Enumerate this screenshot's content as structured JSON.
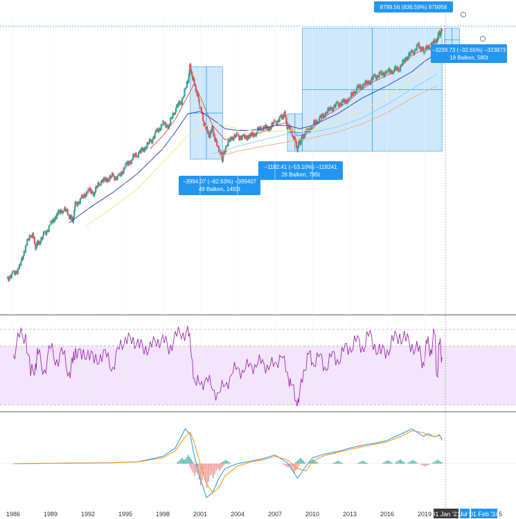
{
  "chart_data": [
    {
      "type": "line",
      "pane": "price",
      "scale": "log",
      "xlim": [
        1985.5,
        2025.5
      ],
      "ylim_log10": [
        1.9,
        4.1
      ],
      "x": [
        1985.5,
        1986,
        1986.5,
        1987,
        1987.5,
        1987.8,
        1988,
        1988.5,
        1989,
        1989.5,
        1990,
        1990.5,
        1990.8,
        1991,
        1991.5,
        1992,
        1992.5,
        1993,
        1993.5,
        1994,
        1994.5,
        1995,
        1995.5,
        1996,
        1996.5,
        1997,
        1997.5,
        1998,
        1998.5,
        1999,
        1999.5,
        2000,
        2000.2,
        2000.5,
        2000.8,
        2001,
        2001.3,
        2001.7,
        2002,
        2002.3,
        2002.7,
        2002.8,
        2003,
        2003.5,
        2004,
        2004.5,
        2005,
        2005.5,
        2006,
        2006.5,
        2007,
        2007.5,
        2007.8,
        2008,
        2008.5,
        2008.8,
        2009,
        2009.2,
        2009.5,
        2010,
        2010.5,
        2011,
        2011.5,
        2012,
        2012.5,
        2013,
        2013.5,
        2014,
        2014.5,
        2015,
        2015.5,
        2016,
        2016.5,
        2017,
        2017.5,
        2018,
        2018.5,
        2018.9,
        2019,
        2019.5,
        2020,
        2020.2,
        2020.4
      ],
      "series": [
        {
          "role": "price",
          "values": [
            125,
            135,
            150,
            220,
            280,
            220,
            230,
            270,
            320,
            380,
            420,
            380,
            340,
            460,
            500,
            580,
            560,
            680,
            700,
            740,
            730,
            890,
            1000,
            1100,
            1200,
            1350,
            1600,
            1850,
            1800,
            2400,
            2750,
            3800,
            5000,
            3800,
            3100,
            2500,
            1900,
            1500,
            1700,
            1300,
            1100,
            1000,
            1200,
            1450,
            1500,
            1450,
            1500,
            1600,
            1750,
            1700,
            1900,
            2050,
            2200,
            1750,
            1500,
            1200,
            1350,
            1450,
            1600,
            1800,
            2000,
            2200,
            2400,
            2600,
            2700,
            2900,
            3400,
            3600,
            3800,
            4200,
            4400,
            4600,
            4700,
            4900,
            5800,
            6400,
            7200,
            6700,
            6600,
            7300,
            8000,
            9000,
            9300
          ]
        },
        {
          "role": "sma-slow",
          "values": [
            null,
            null,
            null,
            null,
            null,
            null,
            null,
            null,
            null,
            null,
            null,
            null,
            null,
            null,
            null,
            null,
            null,
            null,
            null,
            null,
            null,
            null,
            null,
            null,
            null,
            null,
            null,
            null,
            null,
            null,
            null,
            null,
            null,
            null,
            null,
            null,
            null,
            null,
            null,
            null,
            null,
            null,
            null,
            null,
            null,
            null,
            null,
            null,
            null,
            null,
            null,
            null,
            null,
            null,
            null,
            null,
            null,
            null,
            null,
            null,
            null,
            null,
            null,
            null,
            null,
            null,
            null,
            null,
            null,
            null,
            null,
            null,
            null,
            null,
            null,
            null,
            null,
            null,
            null,
            null,
            null,
            null,
            null
          ]
        }
      ],
      "moving_averages": [
        {
          "color": "#e0525a",
          "x": [
            1997,
            1998,
            1999,
            2000,
            2000.5,
            2001,
            2001.5,
            2002,
            2003,
            2004,
            2005,
            2006,
            2007,
            2008,
            2008.8,
            2009.5,
            2010,
            2011,
            2012,
            2013,
            2014,
            2015,
            2016,
            2017,
            2018,
            2019,
            2020.3
          ],
          "y": [
            1200,
            1500,
            2000,
            3000,
            3700,
            3000,
            2300,
            1800,
            1400,
            1500,
            1500,
            1600,
            1800,
            1900,
            1500,
            1550,
            1700,
            2100,
            2400,
            2800,
            3400,
            3900,
            4300,
            4900,
            6100,
            6900,
            8400
          ]
        },
        {
          "color": "#3046b5",
          "x": [
            1990.5,
            1992,
            1994,
            1996,
            1998,
            1999,
            2000,
            2001,
            2002,
            2003,
            2004,
            2005,
            2006,
            2007,
            2008,
            2009,
            2010,
            2012,
            2014,
            2016,
            2018,
            2019,
            2020.3
          ],
          "y": [
            330,
            420,
            560,
            780,
            1200,
            1600,
            2200,
            2300,
            2000,
            1700,
            1650,
            1650,
            1700,
            1800,
            1800,
            1700,
            1800,
            2200,
            2900,
            3600,
            4600,
            5500,
            6600
          ]
        },
        {
          "color": "#f2e98a",
          "x": [
            1991.8,
            1994,
            1996,
            1998,
            2000,
            2002,
            2003,
            2004,
            2006,
            2008,
            2010,
            2012,
            2014,
            2016,
            2018,
            2020
          ],
          "y": [
            310,
            430,
            600,
            950,
            1500,
            1900,
            1800,
            1700,
            1600,
            1650,
            1650,
            1900,
            2300,
            3000,
            4000,
            5300
          ]
        },
        {
          "color": "#87d4f0",
          "x": [
            2002,
            2004,
            2006,
            2008,
            2010,
            2012,
            2014,
            2016,
            2018,
            2020
          ],
          "y": [
            1100,
            1250,
            1400,
            1550,
            1600,
            1750,
            2050,
            2600,
            3400,
            4400
          ]
        },
        {
          "color": "#f2b080",
          "x": [
            2002.5,
            2004,
            2006,
            2008,
            2010,
            2012,
            2014,
            2016,
            2018,
            2020
          ],
          "y": [
            1050,
            1150,
            1250,
            1350,
            1450,
            1600,
            1850,
            2250,
            2900,
            3600
          ]
        }
      ],
      "measurements": [
        {
          "text_main": "−3994.07 (−82.93%) −399407",
          "text_sub": "49 Balken, 1492t",
          "x_from": 2000.2,
          "x_to": 2002.8,
          "y_from": 5000,
          "y_to": 1000
        },
        {
          "text_main": "−1182.41 (−53.10%) −118241",
          "text_sub": "26 Balken, 795t",
          "x_from": 2008.0,
          "x_to": 2009.2,
          "y_from": 2200,
          "y_to": 1150
        },
        {
          "text_main": "8799.56 (836.59%) 879956",
          "text_sub": "",
          "x_from": 2009.2,
          "x_to": 2020.4,
          "y_from": 1150,
          "y_to": 9800
        },
        {
          "text_main": "−3238.73 (−32.65%) −323873",
          "text_sub": "19 Balken, 580t",
          "x_from": 2020.6,
          "x_to": 2021.8,
          "y_from": 9800,
          "y_to": 6500
        }
      ]
    },
    {
      "type": "line",
      "pane": "rsi",
      "ylim": [
        20,
        90
      ],
      "levels": [
        30,
        70
      ],
      "x": [
        1986,
        1986.5,
        1987,
        1987.4,
        1987.8,
        1988,
        1988.5,
        1989,
        1989.5,
        1990,
        1990.5,
        1990.8,
        1991,
        1991.5,
        1992,
        1992.5,
        1993,
        1993.5,
        1994,
        1994.5,
        1995,
        1995.5,
        1996,
        1996.5,
        1997,
        1997.5,
        1998,
        1998.5,
        1999,
        1999.5,
        2000,
        2000.3,
        2000.6,
        2001,
        2001.5,
        2002,
        2002.5,
        2003,
        2003.5,
        2004,
        2004.5,
        2005,
        2005.5,
        2006,
        2006.5,
        2007,
        2007.5,
        2008,
        2008.3,
        2008.7,
        2008.9,
        2009.3,
        2009.7,
        2010,
        2010.5,
        2011,
        2011.5,
        2012,
        2012.5,
        2013,
        2013.5,
        2014,
        2014.5,
        2015,
        2015.5,
        2016,
        2016.5,
        2017,
        2017.5,
        2018,
        2018.5,
        2018.9,
        2019.2,
        2019.5,
        2019.8,
        2020,
        2020.2,
        2020.4
      ],
      "values": [
        62,
        75,
        78,
        45,
        55,
        62,
        50,
        66,
        58,
        62,
        48,
        55,
        67,
        58,
        66,
        55,
        62,
        60,
        52,
        66,
        76,
        70,
        74,
        62,
        72,
        68,
        78,
        62,
        80,
        74,
        84,
        60,
        40,
        38,
        44,
        34,
        32,
        38,
        46,
        52,
        48,
        55,
        52,
        58,
        50,
        56,
        60,
        48,
        38,
        26,
        24,
        50,
        62,
        56,
        60,
        52,
        60,
        58,
        64,
        68,
        72,
        68,
        76,
        70,
        62,
        66,
        72,
        78,
        72,
        70,
        64,
        56,
        70,
        66,
        78,
        45,
        70,
        60
      ]
    },
    {
      "type": "line",
      "pane": "macd",
      "ylim": [
        -1000,
        1000
      ],
      "x": [
        1986,
        1988,
        1990,
        1992,
        1994,
        1996,
        1998,
        1999,
        1999.8,
        2000.2,
        2000.5,
        2001,
        2001.5,
        2002,
        2002.5,
        2003,
        2004,
        2005,
        2006,
        2007,
        2008,
        2008.8,
        2009.5,
        2010,
        2011,
        2012,
        2013,
        2014,
        2015,
        2016,
        2017,
        2018,
        2018.9,
        2019.3,
        2019.8,
        2020.2,
        2020.4
      ],
      "series": [
        {
          "name": "",
          "color": "#2196f3",
          "values": [
            0,
            5,
            10,
            15,
            20,
            40,
            150,
            320,
            720,
            600,
            200,
            -300,
            -700,
            -600,
            -300,
            -100,
            0,
            50,
            100,
            180,
            20,
            -300,
            -50,
            120,
            200,
            250,
            320,
            380,
            420,
            480,
            600,
            720,
            560,
            620,
            550,
            600,
            480
          ]
        },
        {
          "name": "",
          "color": "#ff8f00",
          "values": [
            0,
            5,
            8,
            12,
            18,
            35,
            120,
            260,
            560,
            650,
            450,
            0,
            -400,
            -600,
            -500,
            -250,
            -50,
            30,
            80,
            150,
            80,
            -100,
            -150,
            50,
            170,
            230,
            290,
            350,
            400,
            450,
            550,
            680,
            640,
            580,
            560,
            580,
            520
          ]
        }
      ],
      "histogram": {
        "x": [
          1999.5,
          2000,
          2000.5,
          2001,
          2001.5,
          2002,
          2002.5,
          2003,
          2008,
          2008.5,
          2009,
          2010,
          2012,
          2014,
          2016,
          2017,
          2018,
          2019,
          2020
        ],
        "values": [
          120,
          180,
          -250,
          -450,
          -500,
          -300,
          -150,
          80,
          -80,
          -200,
          120,
          90,
          60,
          60,
          70,
          90,
          80,
          -60,
          80
        ]
      }
    }
  ],
  "x_axis": {
    "ticks": [
      "1986",
      "1989",
      "1992",
      "1995",
      "1998",
      "2001",
      "2004",
      "2007",
      "2010",
      "2013",
      "2016",
      "2019"
    ],
    "highlights": [
      "01 Jan '21",
      "Jul ' ",
      "01 Feb '24",
      "5"
    ]
  },
  "colors": {
    "price_up": "#26a69a",
    "price_down": "#ef5350",
    "rsi": "#9c27b0",
    "rsi_band": "#f3e5fb",
    "measure_fill": "#bbdefb",
    "measure_edge": "#2196f3",
    "label_bg": "#2196f3"
  }
}
